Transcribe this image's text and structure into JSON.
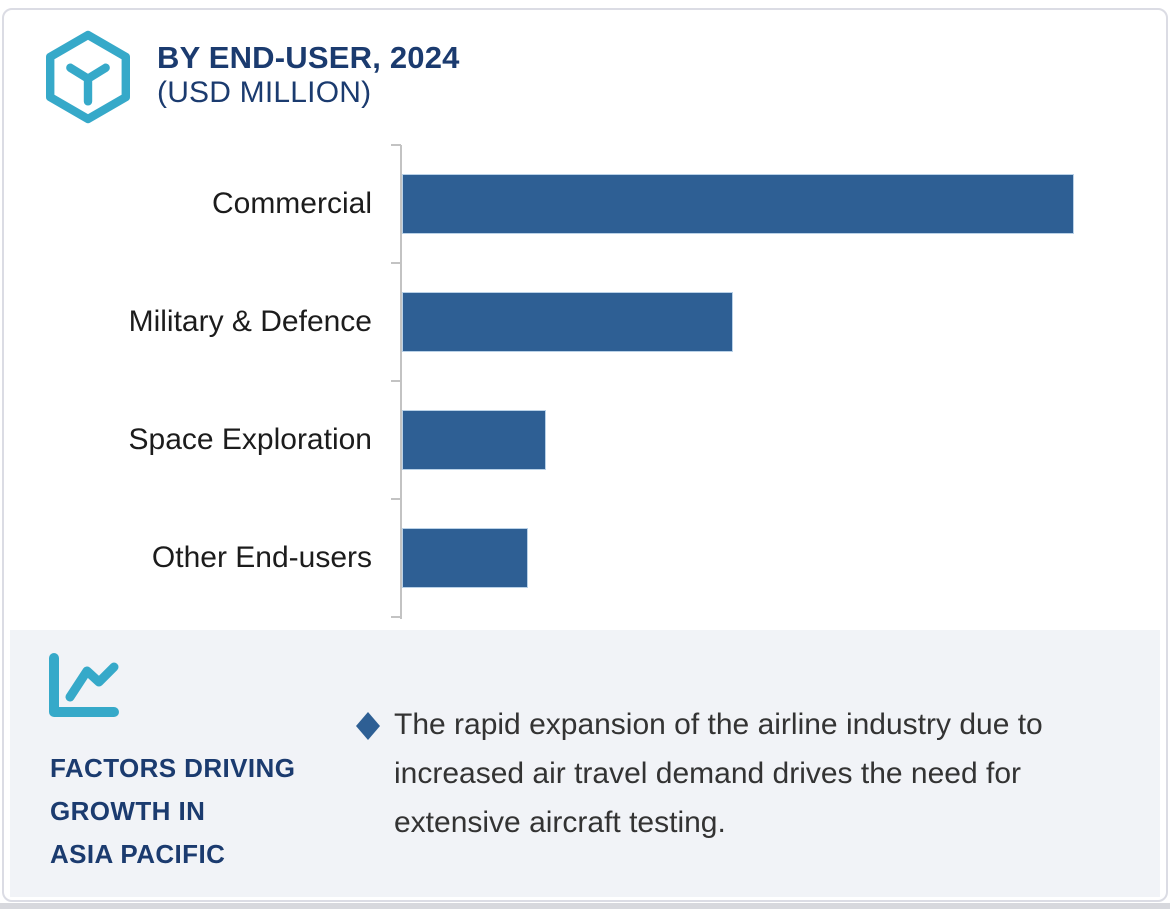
{
  "header": {
    "title": "BY END-USER, 2024",
    "subtitle": "(USD MILLION)",
    "logo_icon": "hexagon-cube-icon",
    "title_color": "#1B3B6F",
    "logo_color": "#36A9C9"
  },
  "chart_data": {
    "type": "bar",
    "orientation": "horizontal",
    "title": "BY END-USER, 2024 (USD MILLION)",
    "categories": [
      "Commercial",
      "Military & Defence",
      "Space Exploration",
      "Other End-users"
    ],
    "values_relative_pct": [
      100,
      49.3,
      21.5,
      18.8
    ],
    "value_labels_shown": false,
    "gridlines": false,
    "axis_style": "left vertical axis line with short ticks, no numeric tick labels",
    "bar_color": "#2E5F94",
    "label_color": "#1c1c1c"
  },
  "factors_panel": {
    "icon": "line-chart-icon",
    "heading": "FACTORS DRIVING\nGROWTH IN\nASIA PACIFIC",
    "heading_color": "#1B3B6F",
    "background": "#F1F3F7",
    "bullet_marker": "diamond-icon",
    "bullet_color": "#2E5F94",
    "text_color": "#333333",
    "bullets": [
      {
        "text": "The rapid expansion of the airline industry due to increased air travel demand drives the need for extensive aircraft testing."
      }
    ]
  }
}
